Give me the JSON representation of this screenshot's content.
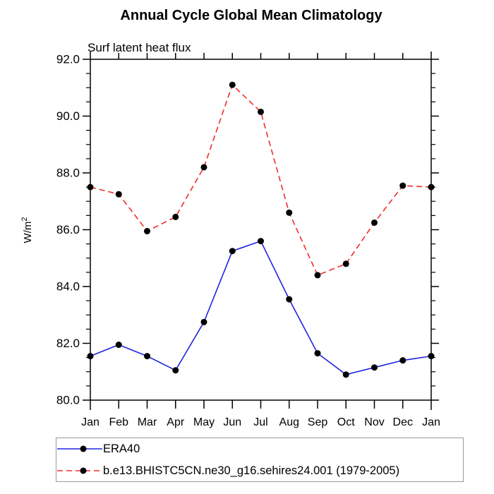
{
  "chart_data": {
    "type": "line",
    "title": "Annual Cycle Global Mean Climatology",
    "subtitle": "Surf latent heat flux",
    "ylabel": "W/m²",
    "ylabel_parts": {
      "base": "W/m",
      "exp": "2"
    },
    "xlabel": "",
    "categories": [
      "Jan",
      "Feb",
      "Mar",
      "Apr",
      "May",
      "Jun",
      "Jul",
      "Aug",
      "Sep",
      "Oct",
      "Nov",
      "Dec",
      "Jan"
    ],
    "ylim": [
      80.0,
      92.0
    ],
    "y_major_tick_interval": 2.0,
    "y_minor_tick_interval": 0.5,
    "y_tick_labels": [
      "80.0",
      "82.0",
      "84.0",
      "86.0",
      "88.0",
      "90.0",
      "92.0"
    ],
    "grid": false,
    "legend_position": "bottom-left",
    "marker": {
      "shape": "filled-circle",
      "color": "#000000"
    },
    "series": [
      {
        "name": "ERA40",
        "color": "#2222e0",
        "line_style": "solid",
        "values": [
          81.55,
          81.95,
          81.55,
          81.05,
          82.75,
          85.25,
          85.6,
          83.55,
          81.65,
          80.9,
          81.15,
          81.4,
          81.55
        ]
      },
      {
        "name": "b.e13.BHISTC5CN.ne30_g16.sehires24.001 (1979-2005)",
        "color": "#f22b2b",
        "line_style": "dashed",
        "values": [
          87.5,
          87.25,
          85.95,
          86.45,
          88.2,
          91.1,
          90.15,
          86.6,
          84.4,
          84.8,
          86.25,
          87.55,
          87.5
        ]
      }
    ]
  },
  "layout_colors": {
    "axis": "#000000",
    "background": "#ffffff",
    "legend_border": "#9a9a9a"
  }
}
